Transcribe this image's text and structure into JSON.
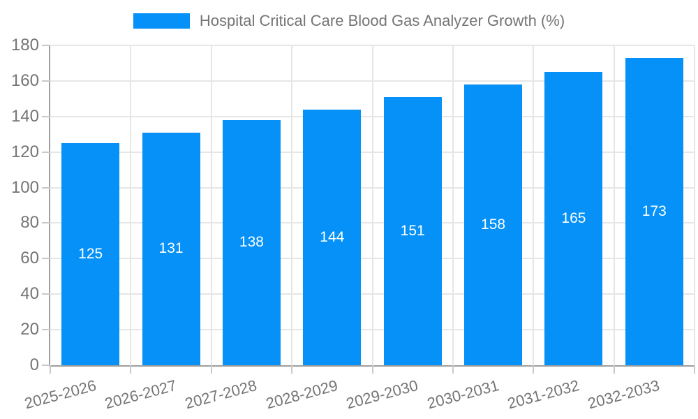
{
  "legend": {
    "series_label": "Hospital Critical Care Blood Gas Analyzer Growth (%)"
  },
  "chart_data": {
    "type": "bar",
    "title": "Hospital Critical Care Blood Gas Analyzer Growth (%)",
    "categories": [
      "2025-2026",
      "2026-2027",
      "2027-2028",
      "2028-2029",
      "2029-2030",
      "2030-2031",
      "2031-2032",
      "2032-2033"
    ],
    "values": [
      125,
      131,
      138,
      144,
      151,
      158,
      165,
      173
    ],
    "value_labels": [
      "125",
      "131",
      "138",
      "144",
      "151",
      "158",
      "165",
      "173"
    ],
    "xlabel": "",
    "ylabel": "",
    "ylim": [
      0,
      180
    ],
    "yticks": [
      0,
      20,
      40,
      60,
      80,
      100,
      120,
      140,
      160,
      180
    ],
    "grid": true,
    "legend_position": "top-center",
    "x_label_rotation_deg": -15,
    "colors": {
      "bar": "#0591f8",
      "bar_value_text": "#ffffff",
      "axis_text": "#757575",
      "legend_text": "#757575",
      "axis_line": "#9e9e9e",
      "gridline": "#e6e6e6",
      "tick": "#c9c9c9",
      "background": "#ffffff"
    }
  }
}
